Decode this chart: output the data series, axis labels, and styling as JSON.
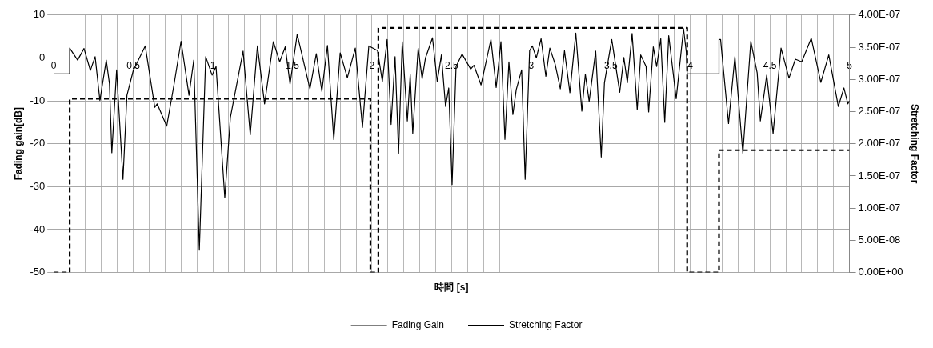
{
  "chart_data": {
    "type": "line",
    "xlabel": "時間 [s]",
    "ylabel": "Fading gain[dB]",
    "y2label": "Stretching Factor",
    "xlim": [
      0,
      5
    ],
    "xticks": [
      0,
      {
        "value": 0.1,
        "label": null
      },
      {
        "value": 0.2,
        "label": null
      },
      {
        "value": 0.3,
        "label": null
      },
      {
        "value": 0.4,
        "label": null
      },
      0.5,
      {
        "value": 0.6,
        "label": null
      },
      {
        "value": 0.7,
        "label": null
      },
      {
        "value": 0.8,
        "label": null
      },
      {
        "value": 0.9,
        "label": null
      },
      1,
      {
        "value": 1.1,
        "label": null
      },
      {
        "value": 1.2,
        "label": null
      },
      {
        "value": 1.3,
        "label": null
      },
      {
        "value": 1.4,
        "label": null
      },
      1.5,
      {
        "value": 1.6,
        "label": null
      },
      {
        "value": 1.7,
        "label": null
      },
      {
        "value": 1.8,
        "label": null
      },
      {
        "value": 1.9,
        "label": null
      },
      2,
      {
        "value": 2.1,
        "label": null
      },
      {
        "value": 2.2,
        "label": null
      },
      {
        "value": 2.3,
        "label": null
      },
      {
        "value": 2.4,
        "label": null
      },
      2.5,
      {
        "value": 2.6,
        "label": null
      },
      {
        "value": 2.7,
        "label": null
      },
      {
        "value": 2.8,
        "label": null
      },
      {
        "value": 2.9,
        "label": null
      },
      3,
      {
        "value": 3.1,
        "label": null
      },
      {
        "value": 3.2,
        "label": null
      },
      {
        "value": 3.3,
        "label": null
      },
      {
        "value": 3.4,
        "label": null
      },
      3.5,
      {
        "value": 3.6,
        "label": null
      },
      {
        "value": 3.7,
        "label": null
      },
      {
        "value": 3.8,
        "label": null
      },
      {
        "value": 3.9,
        "label": null
      },
      4,
      {
        "value": 4.1,
        "label": null
      },
      {
        "value": 4.2,
        "label": null
      },
      {
        "value": 4.3,
        "label": null
      },
      {
        "value": 4.4,
        "label": null
      },
      4.5,
      {
        "value": 4.6,
        "label": null
      },
      {
        "value": 4.7,
        "label": null
      },
      {
        "value": 4.8,
        "label": null
      },
      {
        "value": 4.9,
        "label": null
      },
      5
    ],
    "ylim": [
      -50,
      10
    ],
    "yticks": [
      -50,
      -40,
      -30,
      -20,
      -10,
      0,
      10
    ],
    "y2lim": [
      0,
      4e-07
    ],
    "y2ticks": [
      {
        "value": 0,
        "label": "0.00E+00"
      },
      {
        "value": 5e-08,
        "label": "5.00E-08"
      },
      {
        "value": 1e-07,
        "label": "1.00E-07"
      },
      {
        "value": 1.5e-07,
        "label": "1.50E-07"
      },
      {
        "value": 2e-07,
        "label": "2.00E-07"
      },
      {
        "value": 2.5e-07,
        "label": "2.50E-07"
      },
      {
        "value": 3e-07,
        "label": "3.00E-07"
      },
      {
        "value": 3.5e-07,
        "label": "3.50E-07"
      },
      {
        "value": 4e-07,
        "label": "4.00E-07"
      }
    ],
    "grid": true,
    "legend": "bottom",
    "marker": "none",
    "series": [
      {
        "name": "Fading Gain",
        "color": "#000000",
        "type": "line",
        "line_style": "solid",
        "x": [
          0,
          0.1,
          0.1,
          0.15,
          0.19,
          0.23,
          0.26,
          0.29,
          0.33,
          0.35,
          0.365,
          0.395,
          0.435,
          0.46,
          0.5,
          0.575,
          0.635,
          0.65,
          0.71,
          0.755,
          0.8,
          0.85,
          0.88,
          0.915,
          0.955,
          0.995,
          1.02,
          1.075,
          1.11,
          1.19,
          1.235,
          1.28,
          1.325,
          1.38,
          1.42,
          1.455,
          1.485,
          1.53,
          1.61,
          1.65,
          1.685,
          1.72,
          1.76,
          1.8,
          1.845,
          1.895,
          1.94,
          1.98,
          2.035,
          2.065,
          2.095,
          2.12,
          2.145,
          2.167,
          2.19,
          2.222,
          2.24,
          2.256,
          2.29,
          2.315,
          2.336,
          2.38,
          2.41,
          2.436,
          2.462,
          2.482,
          2.503,
          2.528,
          2.566,
          2.62,
          2.64,
          2.685,
          2.747,
          2.78,
          2.81,
          2.835,
          2.86,
          2.885,
          2.906,
          2.94,
          2.962,
          2.99,
          3.007,
          3.032,
          3.062,
          3.092,
          3.117,
          3.15,
          3.183,
          3.209,
          3.243,
          3.28,
          3.318,
          3.34,
          3.364,
          3.405,
          3.44,
          3.46,
          3.506,
          3.556,
          3.582,
          3.604,
          3.634,
          3.666,
          3.688,
          3.722,
          3.738,
          3.767,
          3.788,
          3.814,
          3.839,
          3.864,
          3.911,
          3.957,
          3.975,
          3.98,
          4.18,
          4.18,
          4.19,
          4.24,
          4.28,
          4.33,
          4.38,
          4.42,
          4.44,
          4.48,
          4.52,
          4.57,
          4.62,
          4.66,
          4.7,
          4.76,
          4.82,
          4.87,
          4.93,
          4.965,
          4.99,
          5
        ],
        "values": [
          -3.7,
          -3.7,
          2.3,
          -0.5,
          2.2,
          -2.9,
          0.3,
          -9.9,
          -0.5,
          -6,
          -22.1,
          -2.8,
          -28.3,
          -8.7,
          -2.9,
          2.8,
          -11.5,
          -10.7,
          -15.9,
          -6.4,
          3.9,
          -8.7,
          -0.5,
          -44.8,
          0.3,
          -4,
          -2,
          -32.6,
          -13.9,
          1.6,
          -17.9,
          2.8,
          -10.7,
          3.8,
          -0.9,
          2.6,
          -6.1,
          5.5,
          -7.2,
          1,
          -7.8,
          2.9,
          -19,
          1.2,
          -4.6,
          2.3,
          -16.2,
          2.8,
          1.7,
          -5.5,
          4.3,
          -15.5,
          0.3,
          -22.2,
          3.8,
          -14.7,
          -3.9,
          -17.6,
          2.3,
          -4.9,
          0,
          4.7,
          -5.5,
          0.7,
          -11.3,
          -7,
          -29.5,
          -2,
          0.9,
          -2.6,
          -1.7,
          -6.3,
          4.3,
          -6.9,
          3.8,
          -19,
          -0.9,
          -13.2,
          -7.4,
          -2.8,
          -28.3,
          1.7,
          2.8,
          0,
          4.5,
          -4.3,
          2.3,
          -1.4,
          -7.2,
          1.7,
          -8.1,
          5.8,
          -12.4,
          -3.8,
          -10.1,
          1.6,
          -23.1,
          -5.8,
          4.3,
          -8,
          0.1,
          -5.8,
          5.7,
          -12.1,
          0.7,
          -2,
          -12.6,
          2.6,
          -2,
          4.5,
          -15,
          5.2,
          -9.5,
          6.8,
          1.2,
          -3.7,
          -3.7,
          4.3,
          4.3,
          -15.3,
          0.3,
          -22.2,
          3.9,
          -3.5,
          -14.7,
          -4,
          -17.6,
          2.3,
          -4.7,
          -0.3,
          -0.9,
          4.6,
          -5.7,
          0.7,
          -11.3,
          -7,
          -10.7,
          -10
        ]
      },
      {
        "name": "Stretching Factor",
        "color": "#000000",
        "type": "step",
        "line_style": "dashed",
        "axis": "y2",
        "x": [
          0,
          0.1,
          1.99,
          2.04,
          3.98,
          4.18,
          5
        ],
        "values": [
          0,
          2.7e-07,
          0,
          3.8e-07,
          0,
          1.9e-07,
          1.9e-07
        ]
      }
    ]
  }
}
